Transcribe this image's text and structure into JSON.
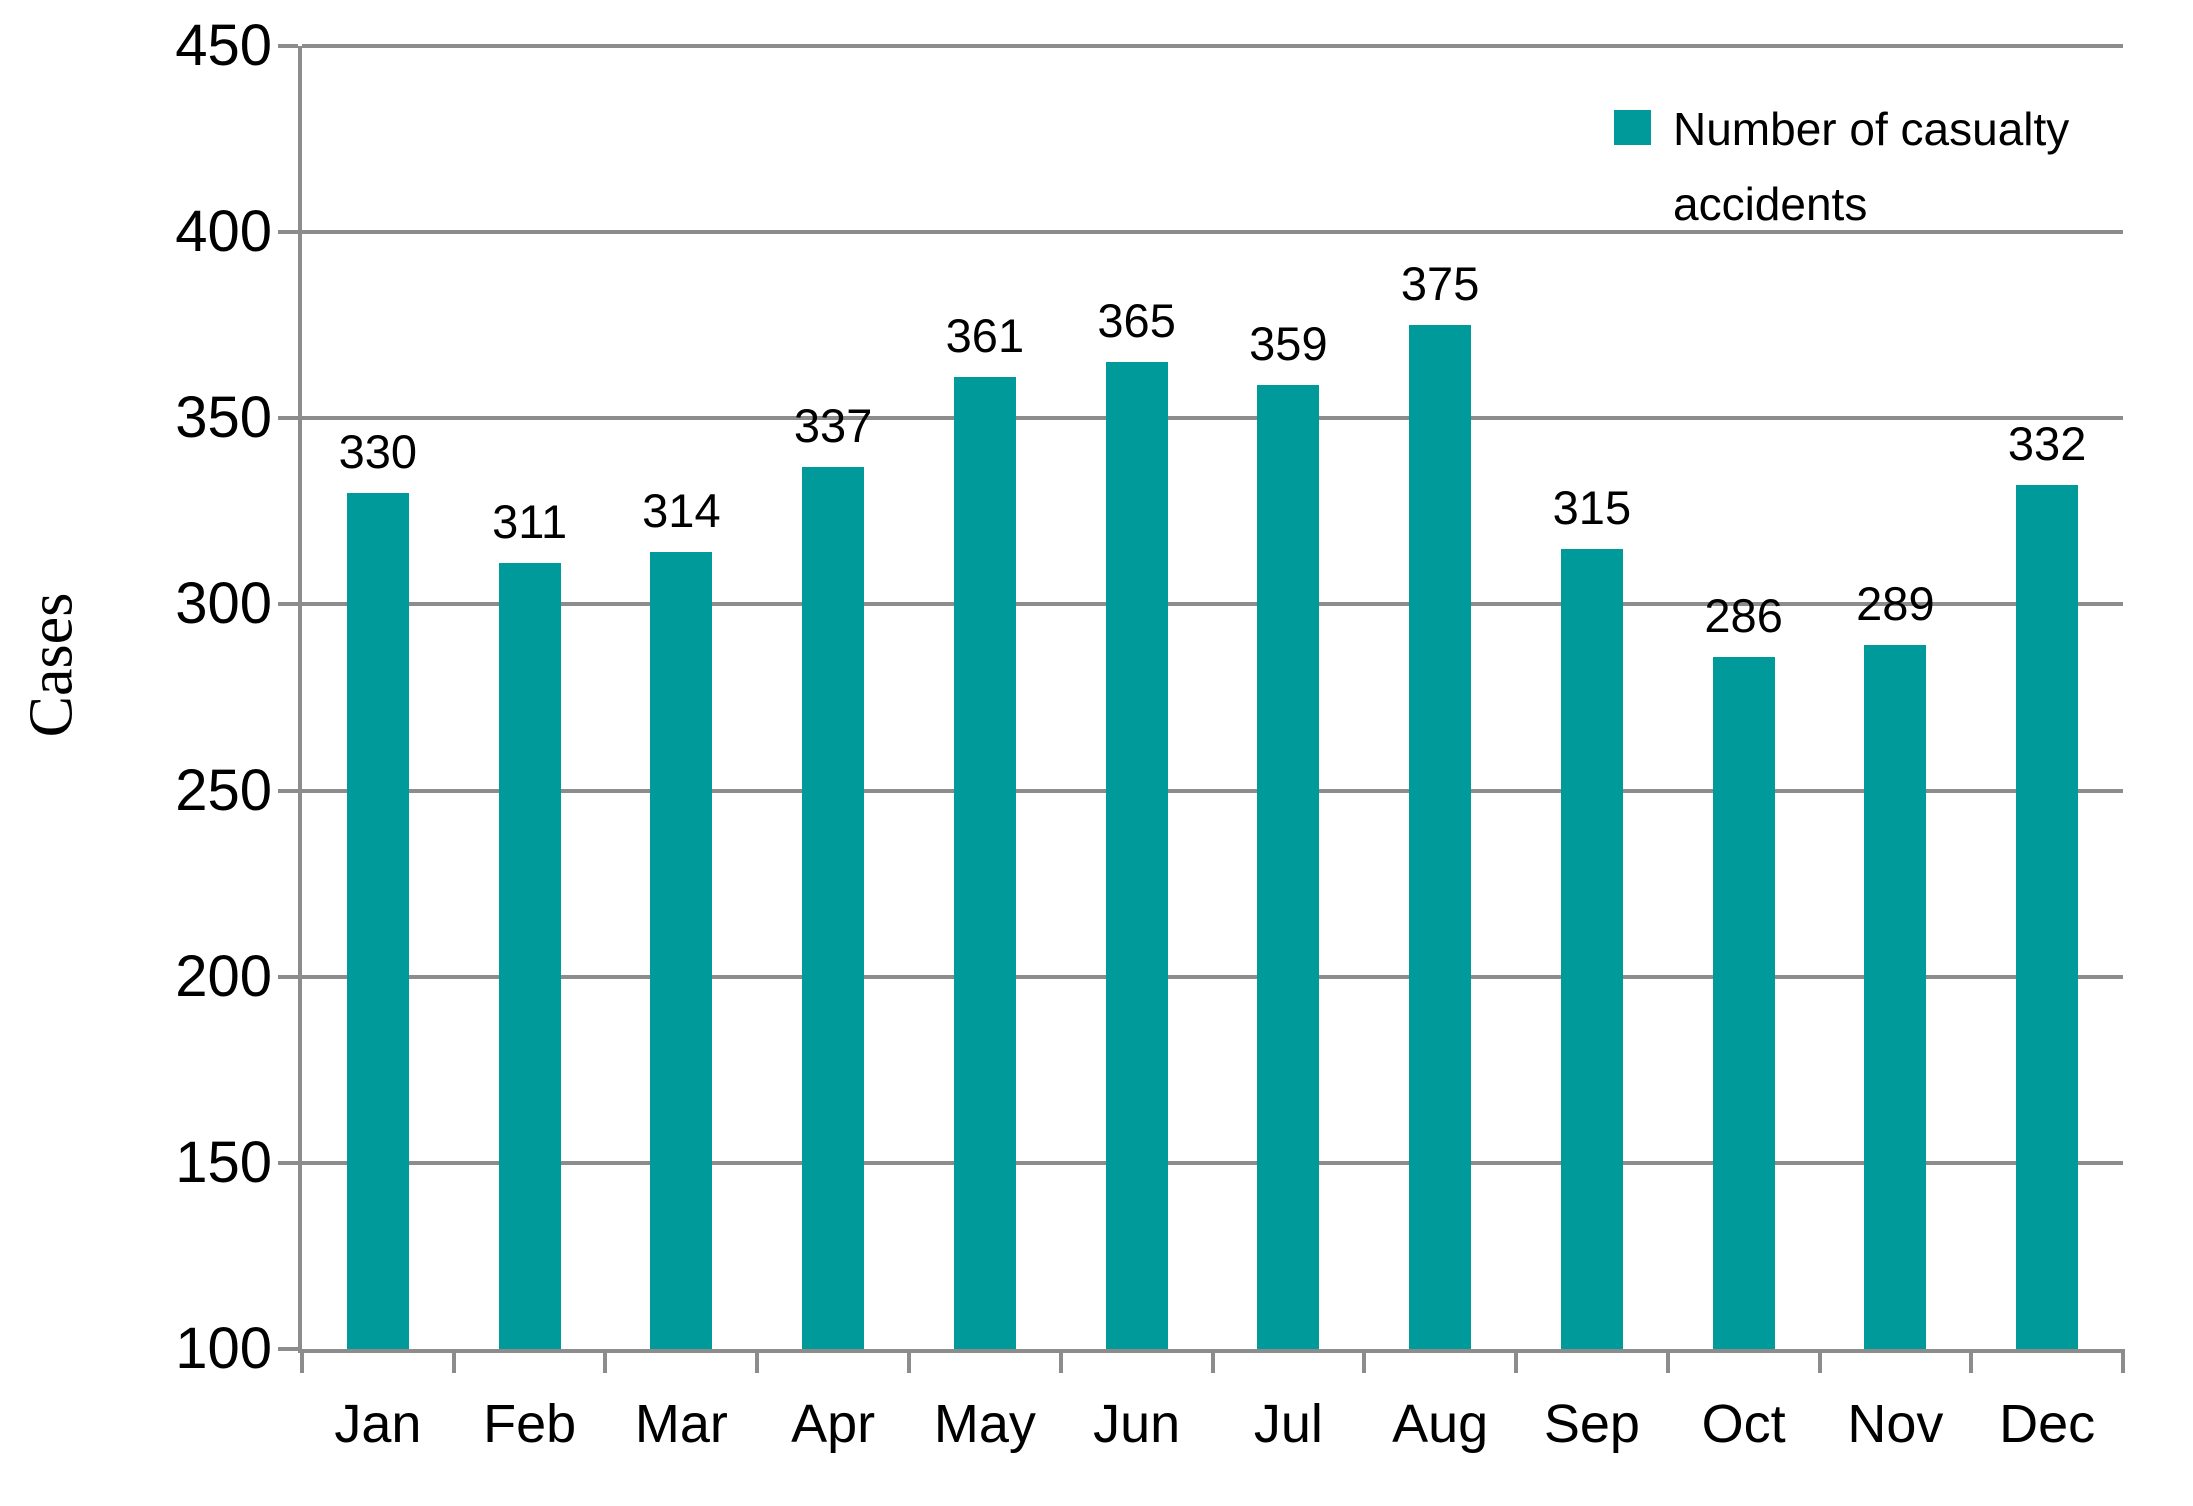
{
  "chart_data": {
    "type": "bar",
    "title": "",
    "categories": [
      "Jan",
      "Feb",
      "Mar",
      "Apr",
      "May",
      "Jun",
      "Jul",
      "Aug",
      "Sep",
      "Oct",
      "Nov",
      "Dec"
    ],
    "series": [
      {
        "name": "Number of casualty accidents",
        "values": [
          330,
          311,
          314,
          337,
          361,
          365,
          359,
          375,
          315,
          286,
          289,
          332
        ]
      }
    ],
    "xlabel": "",
    "ylabel": "Cases",
    "ylim": [
      100,
      450
    ],
    "yticks": [
      100,
      150,
      200,
      250,
      300,
      350,
      400,
      450
    ],
    "grid": true,
    "show_data_labels": true,
    "legend_position": "top-right"
  },
  "colors": {
    "bar": "#009A9A",
    "grid": "#8C8C8C",
    "axis": "#8C8C8C",
    "text": "#000000"
  }
}
